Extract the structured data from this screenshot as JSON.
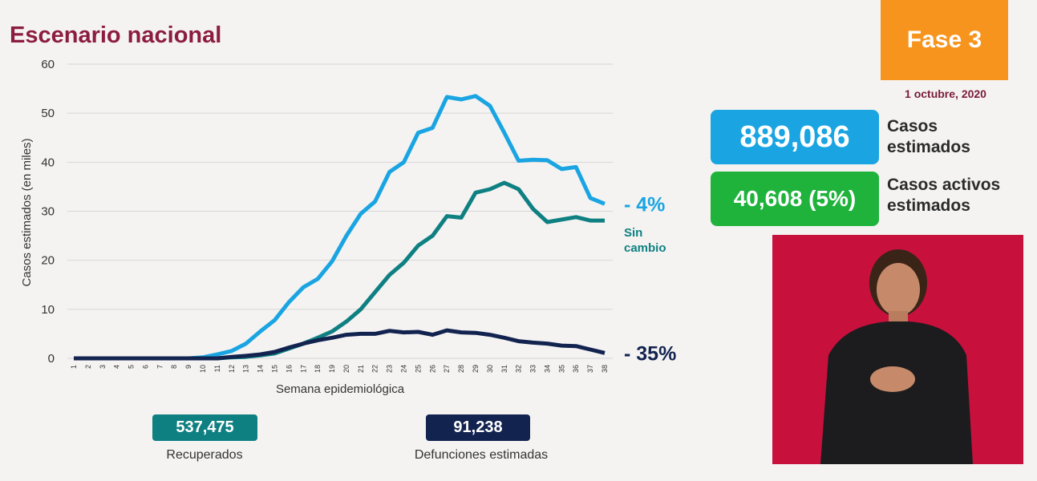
{
  "header": {
    "title": "Escenario nacional",
    "phase": "Fase 3",
    "date": "1 octubre, 2020"
  },
  "stats": {
    "cases_value": "889,086",
    "cases_label": "Casos estimados",
    "active_value": "40,608 (5%)",
    "active_label": "Casos activos estimados",
    "recovered_value": "537,475",
    "recovered_label": "Recuperados",
    "deaths_value": "91,238",
    "deaths_label": "Defunciones estimadas"
  },
  "chart_data": {
    "type": "line",
    "y_label": "Casos estimados (en miles)",
    "x_label": "Semana epidemiológica",
    "categories": [
      "1",
      "2",
      "3",
      "4",
      "5",
      "6",
      "7",
      "8",
      "9",
      "10",
      "11",
      "12",
      "13",
      "14",
      "15",
      "16",
      "17",
      "18",
      "19",
      "20",
      "21",
      "22",
      "23",
      "24",
      "25",
      "26",
      "27",
      "28",
      "29",
      "30",
      "31",
      "32",
      "33",
      "34",
      "35",
      "36",
      "37",
      "38"
    ],
    "ylim": [
      0,
      60
    ],
    "yticks": [
      0,
      10,
      20,
      30,
      40,
      50,
      60
    ],
    "grid": true,
    "series": [
      {
        "label": "- 4%",
        "color": "#1aa5e2",
        "values": [
          0,
          0,
          0,
          0,
          0,
          0,
          0,
          0,
          0,
          0.2,
          0.8,
          1.5,
          3,
          5.5,
          7.8,
          11.5,
          14.5,
          16.2,
          19.8,
          25,
          29.5,
          32,
          38,
          40,
          46,
          47,
          53.3,
          52.8,
          53.5,
          51.5,
          46,
          40.3,
          40.5,
          40.4,
          38.6,
          39,
          32.7,
          31.5
        ]
      },
      {
        "label": "Sin cambio",
        "color": "#0f8082",
        "values": [
          0,
          0,
          0,
          0,
          0,
          0,
          0,
          0,
          0,
          0,
          0,
          0.2,
          0.3,
          0.6,
          1,
          2,
          3,
          4.2,
          5.5,
          7.5,
          10,
          13.5,
          17,
          19.5,
          23,
          25,
          29,
          28.7,
          33.8,
          34.5,
          35.8,
          34.5,
          30.5,
          27.8,
          28.3,
          28.8,
          28.1,
          28.1
        ]
      },
      {
        "label": "- 35%",
        "color": "#12234f",
        "values": [
          0,
          0,
          0,
          0,
          0,
          0,
          0,
          0,
          0,
          0,
          0,
          0.3,
          0.5,
          0.8,
          1.3,
          2.2,
          3,
          3.7,
          4.2,
          4.8,
          5,
          5,
          5.6,
          5.3,
          5.4,
          4.8,
          5.7,
          5.3,
          5.2,
          4.8,
          4.2,
          3.5,
          3.2,
          3,
          2.6,
          2.5,
          1.8,
          1.1
        ]
      }
    ]
  }
}
